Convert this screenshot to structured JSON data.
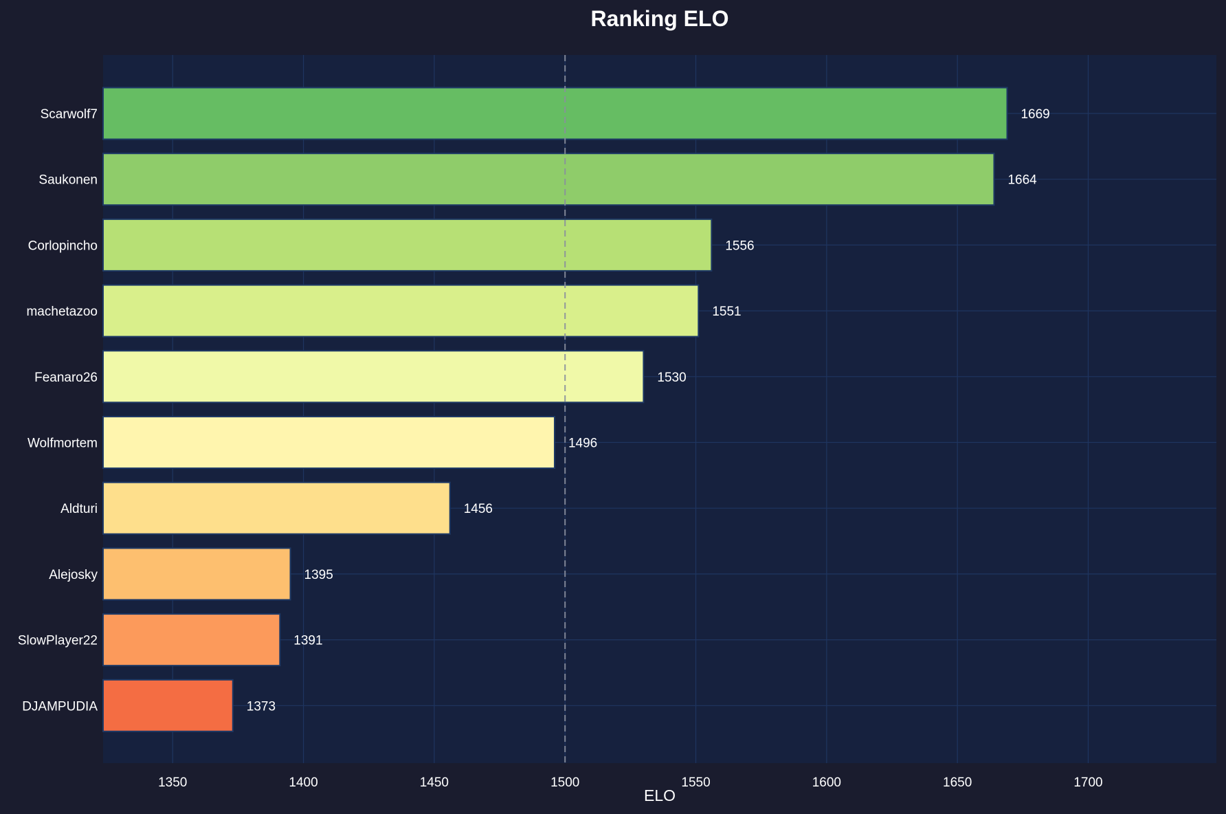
{
  "chart_data": {
    "type": "bar",
    "orientation": "horizontal",
    "title": "Ranking ELO",
    "xlabel": "ELO",
    "ylabel": "",
    "categories": [
      "Scarwolf7",
      "Saukonen",
      "Corlopincho",
      "machetazoo",
      "Feanaro26",
      "Wolfmortem",
      "Aldturi",
      "Alejosky",
      "SlowPlayer22",
      "DJAMPUDIA"
    ],
    "values": [
      1669,
      1664,
      1556,
      1551,
      1530,
      1496,
      1456,
      1395,
      1391,
      1373
    ],
    "xlim": [
      1323.4,
      1749
    ],
    "xticks": [
      1350,
      1400,
      1450,
      1500,
      1550,
      1600,
      1650,
      1700
    ],
    "reference_line": 1500,
    "grid": true,
    "colors": {
      "background": "#1a1c2e",
      "plot_background": "#16213e",
      "grid": "#1f3560",
      "reference_line": "#8a8f9e",
      "bars": [
        "#66bd63",
        "#8fcc6a",
        "#b7e075",
        "#d9ef8b",
        "#f0f9a8",
        "#fff5ae",
        "#fedf8c",
        "#fdbf6f",
        "#fc9a5b",
        "#f46d43"
      ],
      "bar_edge": "#1f3a66"
    }
  }
}
